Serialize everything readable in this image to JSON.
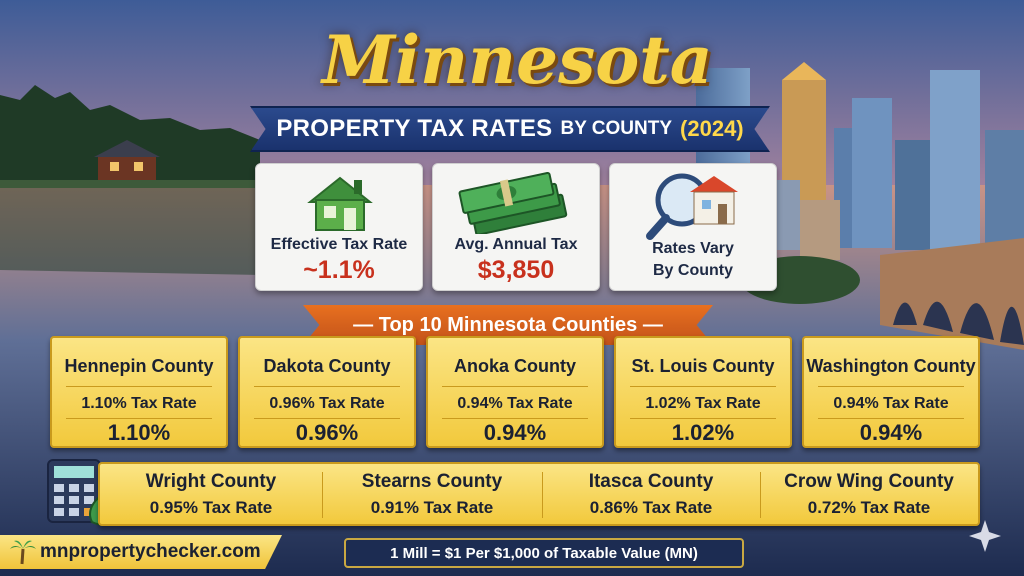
{
  "header": {
    "title": "Minnesota",
    "subtitle_main": "PROPERTY TAX RATES",
    "subtitle_mid": "BY COUNTY",
    "subtitle_year": "(2024)"
  },
  "stats": [
    {
      "label": "Effective Tax Rate",
      "value": "~1.1%",
      "icon": "house-icon"
    },
    {
      "label": "Avg. Annual Tax",
      "value": "$3,850",
      "icon": "money-stack-icon"
    },
    {
      "label_line1": "Rates Vary",
      "label_line2": "By County",
      "icon": "magnifier-house-icon"
    }
  ],
  "section_title": "— Top 10 Minnesota Counties —",
  "counties_top": [
    {
      "name": "Hennepin County",
      "rate": "1.10% Tax Rate",
      "pct": "1.10%"
    },
    {
      "name": "Dakota County",
      "rate": "0.96% Tax Rate",
      "pct": "0.96%"
    },
    {
      "name": "Anoka County",
      "rate": "0.94% Tax Rate",
      "pct": "0.94%"
    },
    {
      "name": "St. Louis County",
      "rate": "1.02% Tax Rate",
      "pct": "1.02%"
    },
    {
      "name": "Washington County",
      "rate": "0.94% Tax Rate",
      "pct": "0.94%"
    }
  ],
  "counties_bottom": [
    {
      "name": "Wright County",
      "rate": "0.95% Tax Rate"
    },
    {
      "name": "Stearns County",
      "rate": "0.91% Tax Rate"
    },
    {
      "name": "Itasca County",
      "rate": "0.86% Tax Rate"
    },
    {
      "name": "Crow Wing County",
      "rate": "0.72% Tax Rate"
    }
  ],
  "footer": {
    "site": "mnpropertychecker.com",
    "note": "1 Mill = $1 Per $1,000 of Taxable Value (MN)"
  },
  "colors": {
    "title_gold": "#f7d246",
    "banner_blue": "#1a326d",
    "ribbon_orange": "#e8701f",
    "card_gold": "#f2c93c",
    "value_red": "#c8311d"
  }
}
